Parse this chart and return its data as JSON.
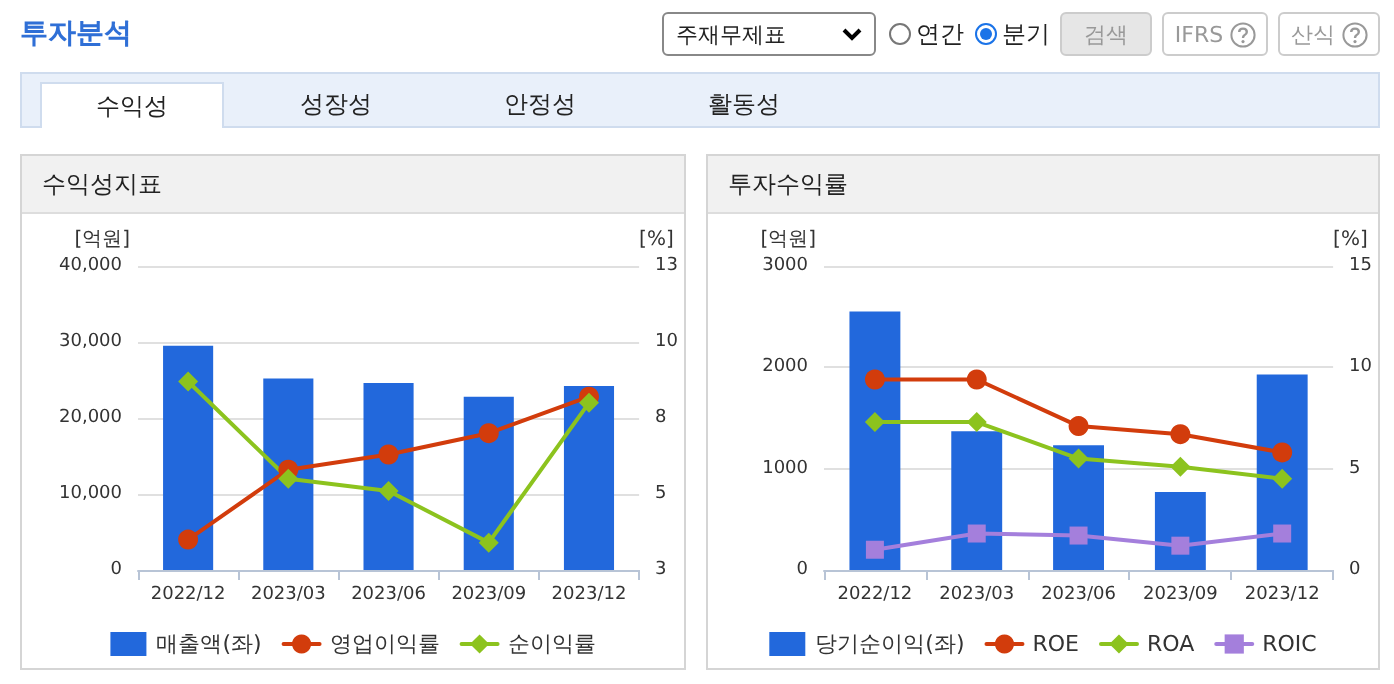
{
  "chart_data": [
    {
      "type": "other",
      "title": "투자분석",
      "annotations": [
        "주재무제표",
        "연간",
        "분기",
        "검색",
        "IFRS",
        "산식",
        "수익성",
        "성장성",
        "안정성",
        "활동성"
      ]
    },
    {
      "type": "bar",
      "title": "수익성지표",
      "ylabel": "[억원]",
      "y2label": "[%]",
      "categories": [
        "2022/12",
        "2023/03",
        "2023/06",
        "2023/09",
        "2023/12"
      ],
      "series": [
        {
          "name": "매출액(좌)",
          "type": "bar",
          "color": "#2268dc",
          "values": [
            29500,
            25200,
            24600,
            22800,
            24200
          ]
        },
        {
          "name": "영업이익률",
          "type": "line",
          "axis": "y2",
          "marker": "circle",
          "color": "#d23c0c",
          "values": [
            4.0,
            6.3,
            6.8,
            7.5,
            8.7
          ]
        },
        {
          "name": "순이익률",
          "type": "line",
          "axis": "y2",
          "marker": "diamond",
          "color": "#8cc31e",
          "values": [
            9.2,
            6.0,
            5.6,
            3.9,
            8.5
          ]
        }
      ],
      "ylim": [
        0,
        40000
      ],
      "yticks": [
        0,
        {
          "value": 10000,
          "label": "10,000"
        },
        {
          "value": 20000,
          "label": "20,000"
        },
        {
          "value": 30000,
          "label": "30,000"
        },
        {
          "value": 40000,
          "label": "40,000"
        }
      ],
      "y2lim": [
        3,
        13
      ],
      "y2ticks": [
        3,
        {
          "value": 5.5,
          "label": "5"
        },
        8,
        {
          "value": 10.5,
          "label": "10"
        },
        13
      ],
      "grid": "y",
      "legend": "bottom"
    },
    {
      "type": "bar",
      "title": "투자수익률",
      "ylabel": "[억원]",
      "y2label": "[%]",
      "categories": [
        "2022/12",
        "2023/03",
        "2023/06",
        "2023/09",
        "2023/12"
      ],
      "series": [
        {
          "name": "당기순이익(좌)",
          "type": "bar",
          "color": "#2268dc",
          "values": [
            2550,
            1370,
            1230,
            770,
            1930
          ]
        },
        {
          "name": "ROE",
          "type": "line",
          "axis": "y2",
          "marker": "circle",
          "color": "#d23c0c",
          "values": [
            9.4,
            9.4,
            7.1,
            6.7,
            5.8
          ]
        },
        {
          "name": "ROA",
          "type": "line",
          "axis": "y2",
          "marker": "diamond",
          "color": "#8cc31e",
          "values": [
            7.3,
            7.3,
            5.5,
            5.1,
            4.5
          ]
        },
        {
          "name": "ROIC",
          "type": "line",
          "axis": "y2",
          "marker": "square",
          "color": "#a47fdc",
          "values": [
            1.0,
            1.8,
            1.7,
            1.2,
            1.8
          ]
        }
      ],
      "ylim": [
        0,
        3000
      ],
      "yticks": [
        0,
        1000,
        2000,
        3000
      ],
      "y2lim": [
        0,
        15
      ],
      "y2ticks": [
        0,
        5,
        10,
        15
      ],
      "grid": "y",
      "legend": "bottom"
    }
  ]
}
